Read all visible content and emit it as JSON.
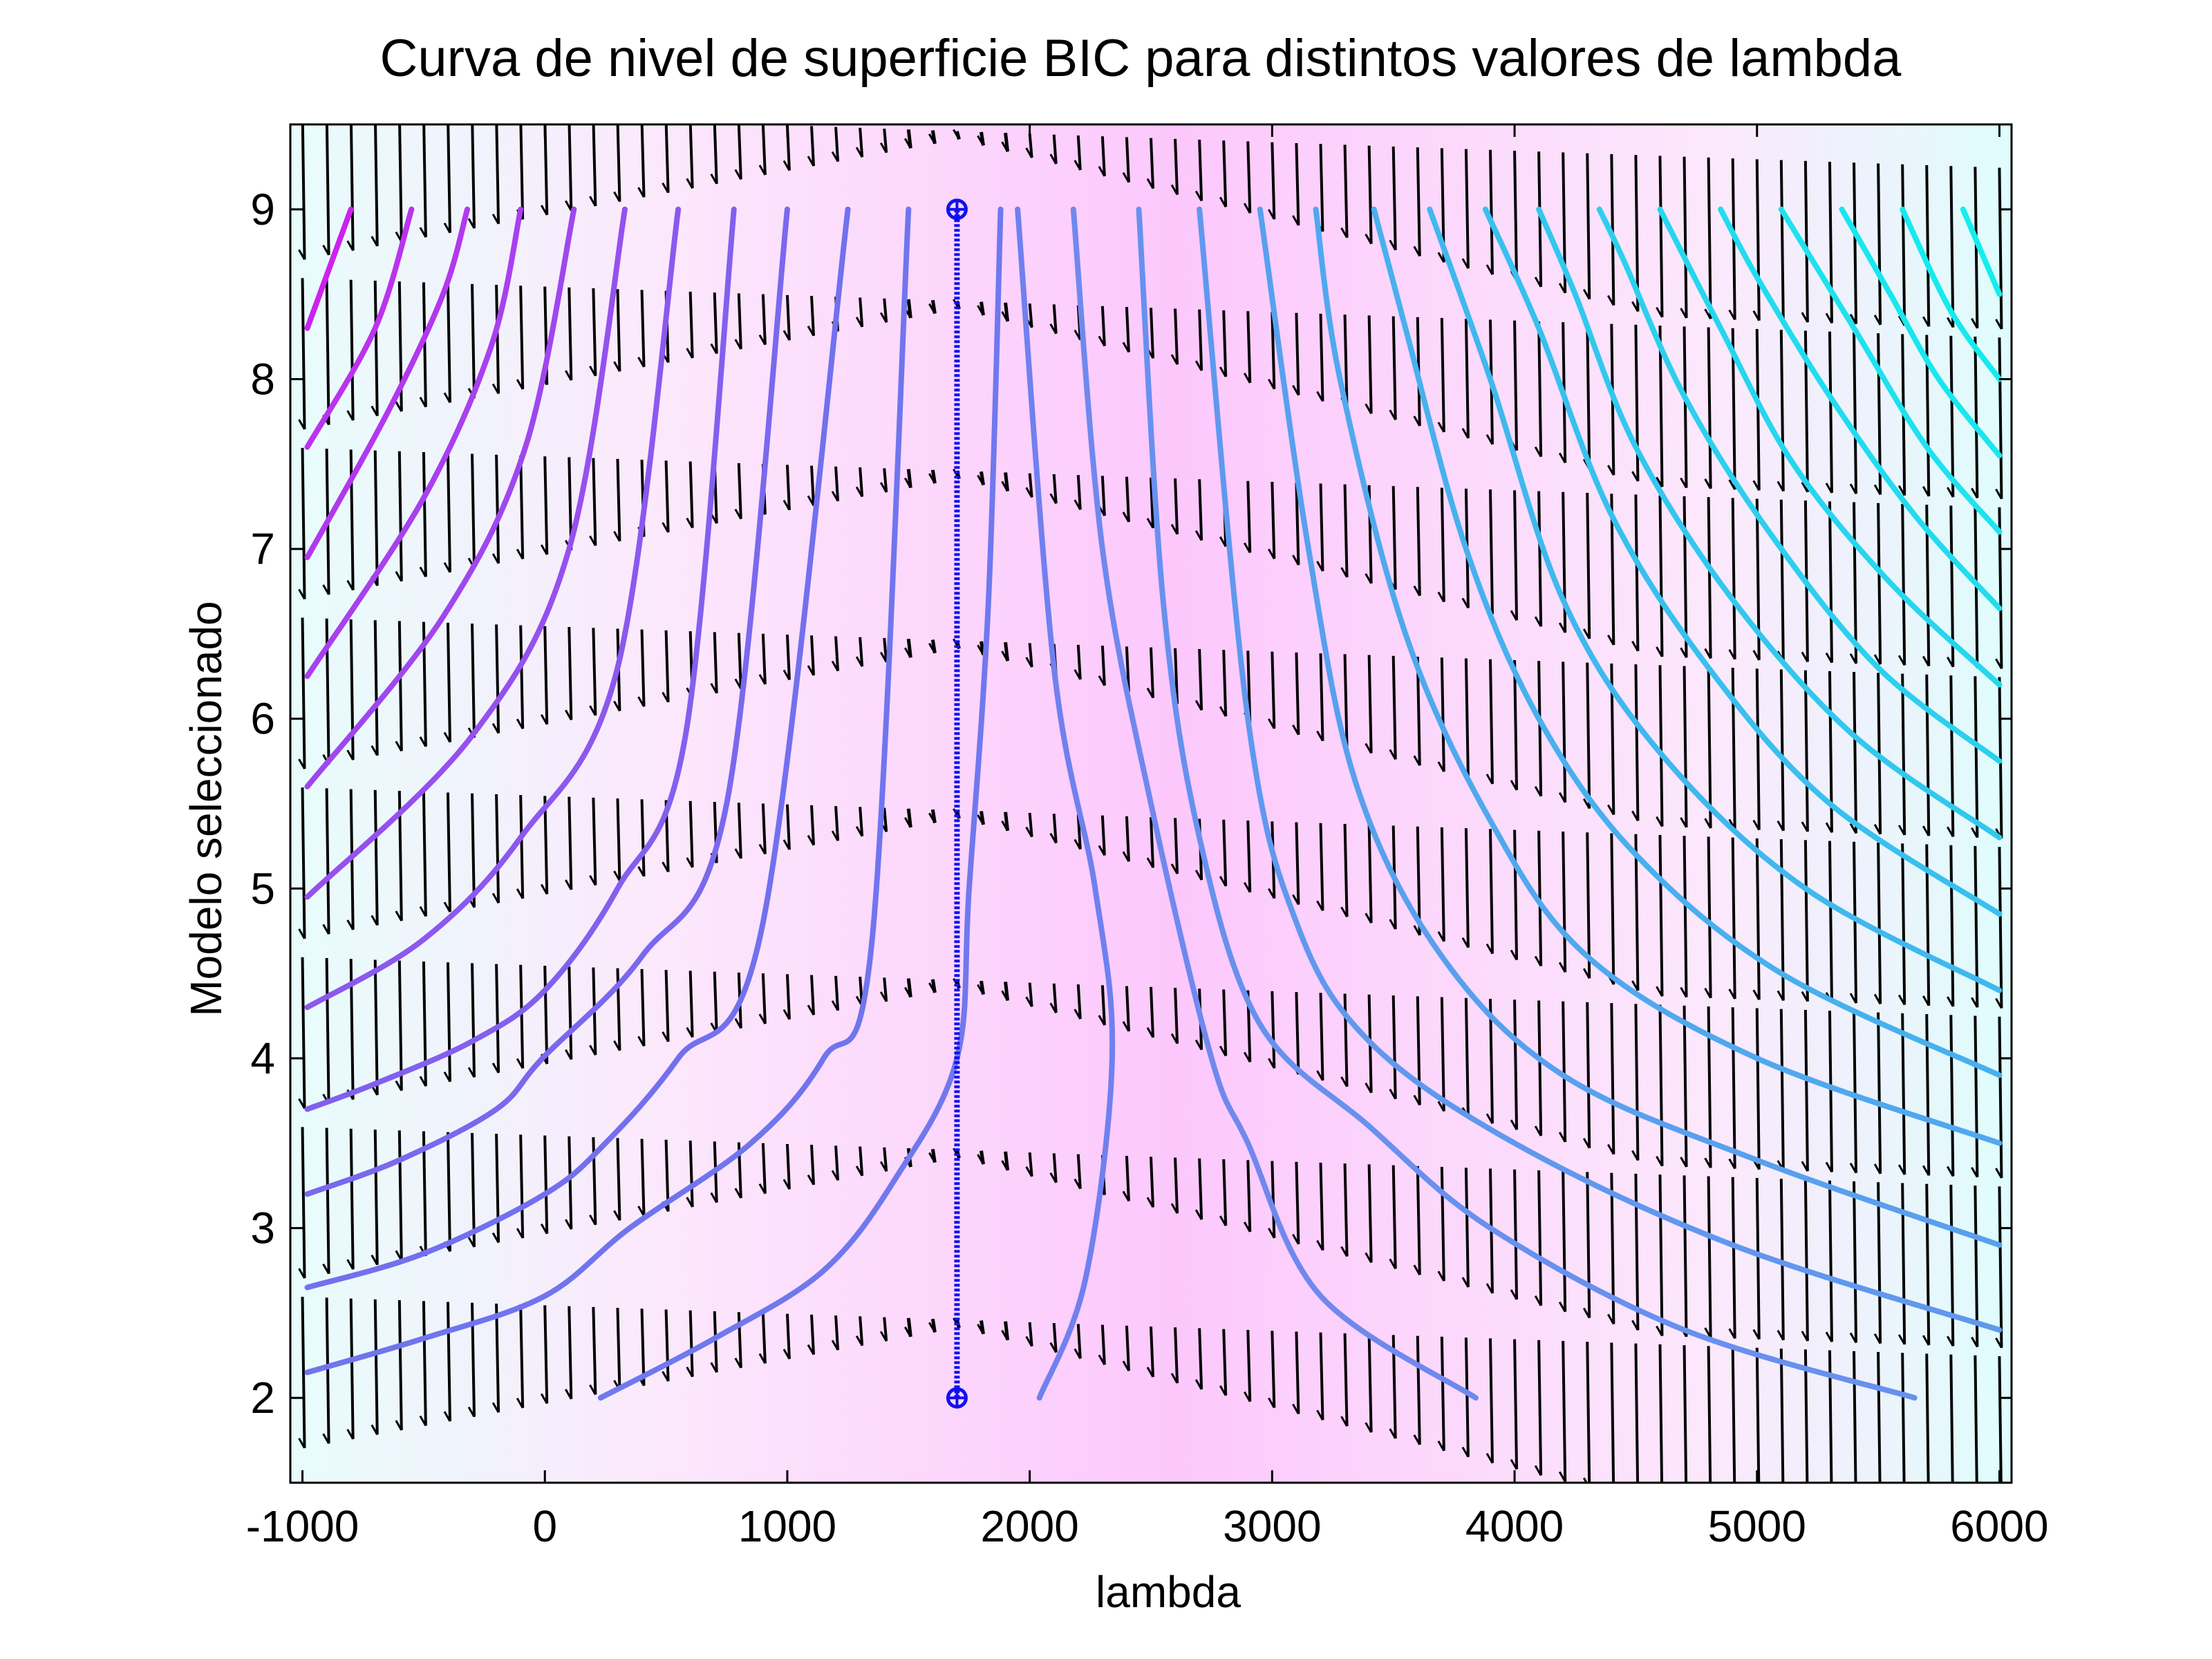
{
  "chart_data": {
    "type": "contour",
    "title": "Curva de nivel de superficie BIC para distintos valores de lambda",
    "xlabel": "lambda",
    "ylabel": "Modelo seleccionado",
    "xlim": [
      -1050,
      6050
    ],
    "ylim": [
      1.5,
      9.5
    ],
    "x_ticks": [
      -1000,
      0,
      1000,
      2000,
      3000,
      4000,
      5000,
      6000
    ],
    "y_ticks": [
      2,
      3,
      4,
      5,
      6,
      7,
      8,
      9
    ],
    "x_tick_labels": [
      "-1000",
      "0",
      "1000",
      "2000",
      "3000",
      "4000",
      "5000",
      "6000"
    ],
    "y_tick_labels": [
      "2",
      "3",
      "4",
      "5",
      "6",
      "7",
      "8",
      "9"
    ],
    "background_gradient": {
      "colors": [
        "#e8fcfc",
        "#fce8fc",
        "#fcc8fc",
        "#fce8fc",
        "#e0fcfc"
      ],
      "stops_lambda": [
        -1000,
        500,
        2600,
        4800,
        6000
      ]
    },
    "optimal_segment": {
      "lambda": 1700,
      "models": [
        2,
        9
      ],
      "color": "#1010ee"
    },
    "contours": [
      {
        "color": "#cc22ee",
        "points": [
          [
            -980,
            8.3
          ],
          [
            -800,
            9.0
          ]
        ]
      },
      {
        "color": "#bb33ee",
        "points": [
          [
            -980,
            7.6
          ],
          [
            -700,
            8.3
          ],
          [
            -550,
            9.0
          ]
        ]
      },
      {
        "color": "#b238ee",
        "points": [
          [
            -980,
            6.95
          ],
          [
            -650,
            7.8
          ],
          [
            -420,
            8.5
          ],
          [
            -320,
            9.0
          ]
        ]
      },
      {
        "color": "#a840ee",
        "points": [
          [
            -980,
            6.25
          ],
          [
            -500,
            7.3
          ],
          [
            -220,
            8.2
          ],
          [
            -100,
            9.0
          ]
        ]
      },
      {
        "color": "#9f47ee",
        "points": [
          [
            -980,
            5.6
          ],
          [
            -420,
            6.6
          ],
          [
            -80,
            7.6
          ],
          [
            120,
            9.0
          ]
        ]
      },
      {
        "color": "#9650ee",
        "points": [
          [
            -980,
            4.95
          ],
          [
            -300,
            5.9
          ],
          [
            100,
            7.0
          ],
          [
            330,
            9.0
          ]
        ]
      },
      {
        "color": "#8c58ee",
        "points": [
          [
            -980,
            4.3
          ],
          [
            -500,
            4.7
          ],
          [
            -100,
            5.3
          ],
          [
            300,
            6.3
          ],
          [
            550,
            9.0
          ]
        ]
      },
      {
        "color": "#8260ee",
        "points": [
          [
            -980,
            3.7
          ],
          [
            -700,
            3.85
          ],
          [
            -300,
            4.1
          ],
          [
            0,
            4.4
          ],
          [
            300,
            5.0
          ],
          [
            580,
            5.9
          ],
          [
            780,
            9.0
          ]
        ]
      },
      {
        "color": "#7a68ee",
        "points": [
          [
            -980,
            3.2
          ],
          [
            -600,
            3.4
          ],
          [
            -200,
            3.7
          ],
          [
            -10,
            4.0
          ],
          [
            400,
            4.6
          ],
          [
            750,
            5.5
          ],
          [
            1000,
            9.0
          ]
        ]
      },
      {
        "color": "#7270ee",
        "points": [
          [
            -980,
            2.65
          ],
          [
            -500,
            2.85
          ],
          [
            0,
            3.2
          ],
          [
            250,
            3.5
          ],
          [
            550,
            4.0
          ],
          [
            900,
            4.8
          ],
          [
            1250,
            9.0
          ]
        ]
      },
      {
        "color": "#7075ee",
        "points": [
          [
            -980,
            2.15
          ],
          [
            -500,
            2.35
          ],
          [
            0,
            2.6
          ],
          [
            350,
            3.0
          ],
          [
            850,
            3.5
          ],
          [
            1150,
            4.0
          ],
          [
            1350,
            4.7
          ],
          [
            1500,
            9.0
          ]
        ]
      },
      {
        "color": "#7078ee",
        "points": [
          [
            230,
            2.0
          ],
          [
            700,
            2.35
          ],
          [
            1150,
            2.75
          ],
          [
            1450,
            3.3
          ],
          [
            1700,
            4.0
          ],
          [
            1750,
            5.0
          ],
          [
            1830,
            6.7
          ],
          [
            1880,
            9.0
          ]
        ]
      },
      {
        "color": "#7080ee",
        "points": [
          [
            2040,
            2.0
          ],
          [
            2230,
            2.7
          ],
          [
            2340,
            4.0
          ],
          [
            2270,
            5.0
          ],
          [
            2100,
            6.3
          ],
          [
            1950,
            9.0
          ]
        ]
      },
      {
        "color": "#7088ee",
        "points": [
          [
            3840,
            2.0
          ],
          [
            3200,
            2.6
          ],
          [
            2900,
            3.5
          ],
          [
            2750,
            4.0
          ],
          [
            2500,
            5.5
          ],
          [
            2300,
            7.0
          ],
          [
            2180,
            9.0
          ]
        ]
      },
      {
        "color": "#6890ee",
        "points": [
          [
            5650,
            2.0
          ],
          [
            4700,
            2.4
          ],
          [
            3900,
            3.0
          ],
          [
            3400,
            3.6
          ],
          [
            2950,
            4.2
          ],
          [
            2700,
            5.3
          ],
          [
            2550,
            6.7
          ],
          [
            2450,
            9.0
          ]
        ]
      },
      {
        "color": "#6098ee",
        "points": [
          [
            6000,
            2.4
          ],
          [
            4900,
            2.9
          ],
          [
            4000,
            3.5
          ],
          [
            3400,
            4.1
          ],
          [
            3100,
            4.8
          ],
          [
            2900,
            6.0
          ],
          [
            2700,
            9.0
          ]
        ]
      },
      {
        "color": "#58a0ee",
        "points": [
          [
            6000,
            2.9
          ],
          [
            5000,
            3.4
          ],
          [
            4200,
            3.9
          ],
          [
            3700,
            4.6
          ],
          [
            3350,
            5.6
          ],
          [
            3150,
            7.0
          ],
          [
            2950,
            9.0
          ]
        ]
      },
      {
        "color": "#50a8ee",
        "points": [
          [
            6000,
            3.5
          ],
          [
            5000,
            4.0
          ],
          [
            4300,
            4.6
          ],
          [
            3900,
            5.4
          ],
          [
            3550,
            6.5
          ],
          [
            3280,
            8.0
          ],
          [
            3180,
            9.0
          ]
        ]
      },
      {
        "color": "#48b0ee",
        "points": [
          [
            6000,
            3.9
          ],
          [
            5100,
            4.5
          ],
          [
            4500,
            5.2
          ],
          [
            4100,
            6.0
          ],
          [
            3800,
            7.0
          ],
          [
            3550,
            8.3
          ],
          [
            3420,
            9.0
          ]
        ]
      },
      {
        "color": "#40b8ee",
        "points": [
          [
            6000,
            4.4
          ],
          [
            5200,
            5.0
          ],
          [
            4600,
            5.8
          ],
          [
            4200,
            6.7
          ],
          [
            3900,
            8.0
          ],
          [
            3650,
            9.0
          ]
        ]
      },
      {
        "color": "#38c0ee",
        "points": [
          [
            6000,
            4.85
          ],
          [
            5300,
            5.5
          ],
          [
            4800,
            6.3
          ],
          [
            4400,
            7.2
          ],
          [
            4100,
            8.3
          ],
          [
            3880,
            9.0
          ]
        ]
      },
      {
        "color": "#32c8ee",
        "points": [
          [
            6000,
            5.3
          ],
          [
            5400,
            5.9
          ],
          [
            4900,
            6.7
          ],
          [
            4500,
            7.6
          ],
          [
            4250,
            8.5
          ],
          [
            4100,
            9.0
          ]
        ]
      },
      {
        "color": "#2cd0ee",
        "points": [
          [
            6000,
            5.75
          ],
          [
            5500,
            6.3
          ],
          [
            5050,
            7.1
          ],
          [
            4700,
            7.9
          ],
          [
            4450,
            8.7
          ],
          [
            4350,
            9.0
          ]
        ]
      },
      {
        "color": "#26d6ee",
        "points": [
          [
            6000,
            6.2
          ],
          [
            5550,
            6.8
          ],
          [
            5150,
            7.5
          ],
          [
            4850,
            8.3
          ],
          [
            4600,
            9.0
          ]
        ]
      },
      {
        "color": "#22dcee",
        "points": [
          [
            6000,
            6.65
          ],
          [
            5650,
            7.2
          ],
          [
            5300,
            7.9
          ],
          [
            5000,
            8.6
          ],
          [
            4850,
            9.0
          ]
        ]
      },
      {
        "color": "#1ee2ee",
        "points": [
          [
            6000,
            7.1
          ],
          [
            5700,
            7.6
          ],
          [
            5400,
            8.3
          ],
          [
            5100,
            9.0
          ]
        ]
      },
      {
        "color": "#1ae6ee",
        "points": [
          [
            6000,
            7.55
          ],
          [
            5750,
            8.0
          ],
          [
            5550,
            8.5
          ],
          [
            5350,
            9.0
          ]
        ]
      },
      {
        "color": "#16eaee",
        "points": [
          [
            6000,
            8.0
          ],
          [
            5800,
            8.4
          ],
          [
            5600,
            9.0
          ]
        ]
      },
      {
        "color": "#14eeee",
        "points": [
          [
            6000,
            8.5
          ],
          [
            5850,
            9.0
          ]
        ]
      }
    ],
    "quiver": {
      "lambda_start": -1000,
      "lambda_end": 6000,
      "lambda_step": 100,
      "models": [
        2,
        3,
        4,
        5,
        6,
        7,
        8,
        9
      ],
      "color": "#000000"
    }
  }
}
